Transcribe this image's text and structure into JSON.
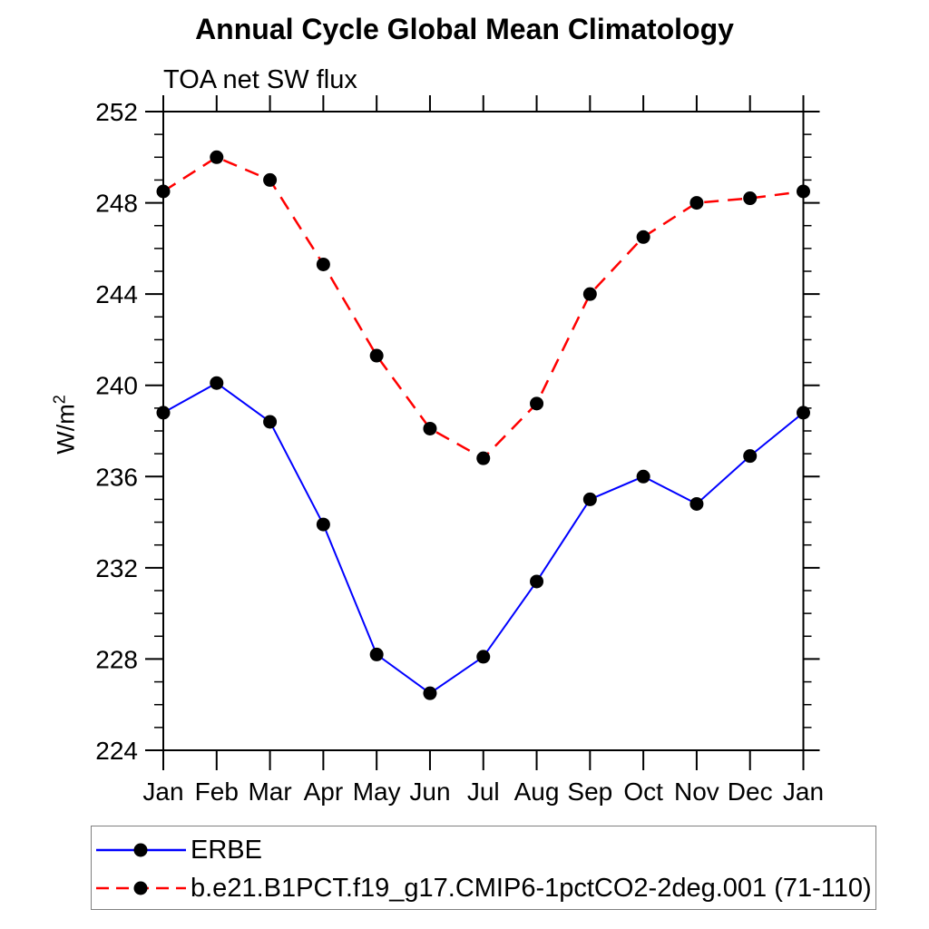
{
  "chart_data": {
    "type": "line",
    "title": "Annual Cycle Global Mean Climatology",
    "subtitle": "TOA net SW flux",
    "ylabel": {
      "base": "W/m",
      "exponent": "2"
    },
    "categories": [
      "Jan",
      "Feb",
      "Mar",
      "Apr",
      "May",
      "Jun",
      "Jul",
      "Aug",
      "Sep",
      "Oct",
      "Nov",
      "Dec",
      "Jan"
    ],
    "ylim": [
      224,
      252
    ],
    "ytick_interval": 4,
    "minor_tick_interval": 1,
    "grid": false,
    "legend_position": "bottom-left",
    "axis_color": "#000000",
    "series": [
      {
        "name": "ERBE",
        "line_color": "#0000ff",
        "line_style": "solid",
        "marker": "filled-circle",
        "marker_color": "#000000",
        "values": [
          238.8,
          240.1,
          238.4,
          233.9,
          228.2,
          226.5,
          228.1,
          231.4,
          235.0,
          236.0,
          234.8,
          236.9,
          238.8
        ]
      },
      {
        "name": "b.e21.B1PCT.f19_g17.CMIP6-1pctCO2-2deg.001 (71-110)",
        "line_color": "#ff0000",
        "line_style": "dashed",
        "marker": "filled-circle",
        "marker_color": "#000000",
        "values": [
          248.5,
          250.0,
          249.0,
          245.3,
          241.3,
          238.1,
          236.8,
          239.2,
          244.0,
          246.5,
          248.0,
          248.2,
          248.5
        ]
      }
    ]
  }
}
